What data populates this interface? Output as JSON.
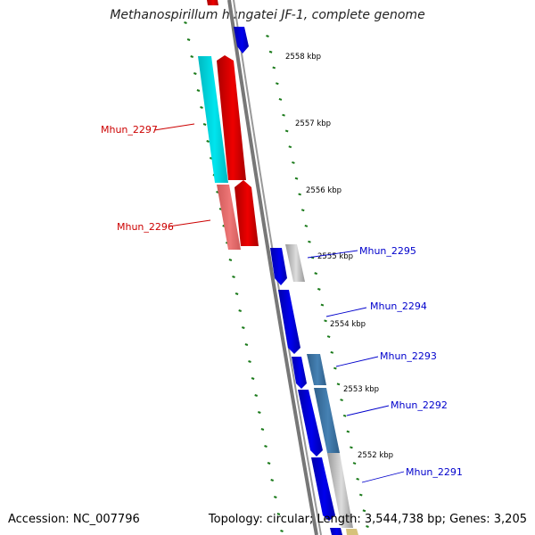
{
  "title": "Methanospirillum hungatei JF-1, complete genome",
  "footer": {
    "accession": "Accession: NC_007796",
    "stats": "Topology: circular; Length: 3,544,738 bp; Genes: 3,205"
  },
  "scale_labels": [
    "2558 kbp",
    "2557 kbp",
    "2556 kbp",
    "2555 kbp",
    "2554 kbp",
    "2553 kbp",
    "2552 kbp"
  ],
  "gene_labels": [
    {
      "text": "Mhun_2297",
      "color": "#cc0000"
    },
    {
      "text": "Mhun_2296",
      "color": "#cc0000"
    },
    {
      "text": "Mhun_2295",
      "color": "#0000cc"
    },
    {
      "text": "Mhun_2294",
      "color": "#0000cc"
    },
    {
      "text": "Mhun_2293",
      "color": "#0000cc"
    },
    {
      "text": "Mhun_2292",
      "color": "#0000cc"
    },
    {
      "text": "Mhun_2291",
      "color": "#0000cc"
    }
  ],
  "colors": {
    "forward_cds": "#0000ee",
    "reverse_cds": "#ee0000",
    "cyan_track": "#00e5ee",
    "pink_track": "#ee7777",
    "grey_track": "#bbbbbb",
    "steel_track": "#4682b4",
    "backbone": "#777777",
    "gc_ticks": "#1a7a1a"
  }
}
